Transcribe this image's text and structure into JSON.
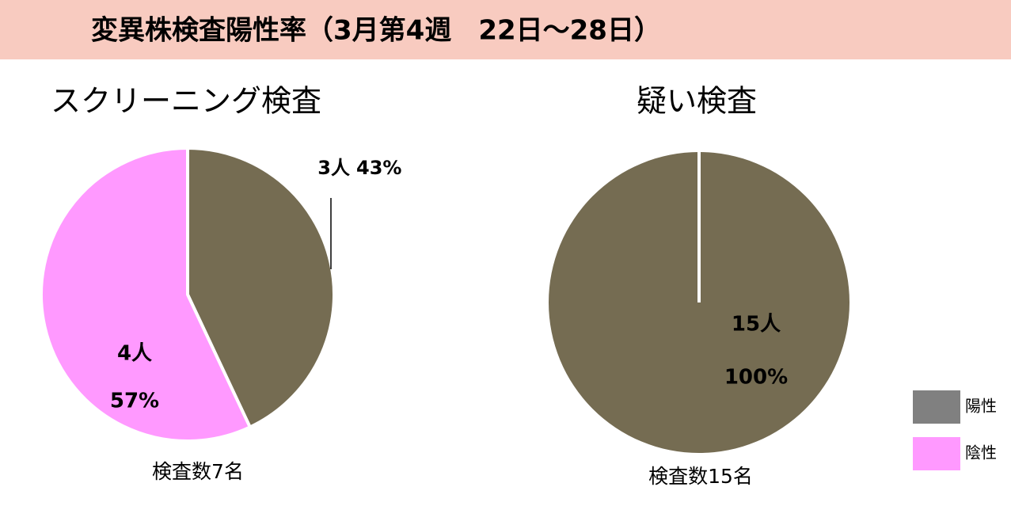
{
  "title": "変異株検査陽性率（3月第4週　22日～28日）",
  "chart_data": [
    {
      "type": "pie",
      "title": "スクリーニング検査",
      "footer": "検査数7名",
      "categories": [
        "陽性",
        "陰性"
      ],
      "values": [
        43,
        57
      ],
      "value_labels": [
        "43%",
        "57%"
      ],
      "counts": [
        3,
        4
      ],
      "count_labels": [
        "3人",
        "4人"
      ],
      "colors": [
        "#756c52",
        "#ff99ff"
      ]
    },
    {
      "type": "pie",
      "title": "疑い検査",
      "footer": "検査数15名",
      "categories": [
        "陽性",
        "陰性"
      ],
      "values": [
        100,
        0
      ],
      "value_labels": [
        "100%",
        null
      ],
      "counts": [
        15,
        0
      ],
      "count_labels": [
        "15人",
        null
      ],
      "colors": [
        "#756c52",
        "#ff99ff"
      ]
    }
  ],
  "legend": {
    "position": "bottom-right",
    "colors": [
      "#808080",
      "#ff99ff"
    ]
  }
}
